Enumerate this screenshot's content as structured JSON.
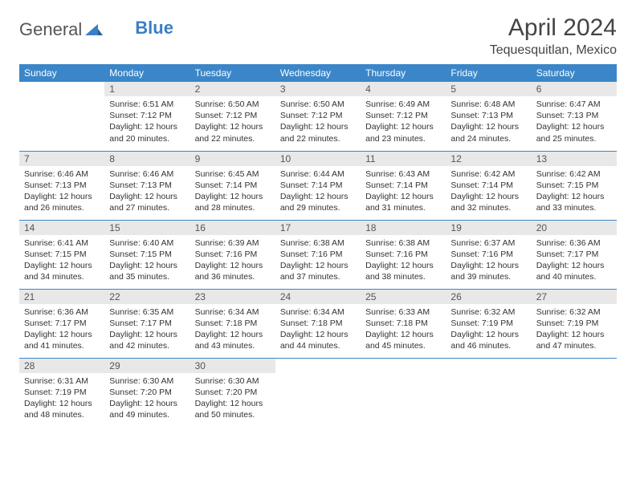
{
  "brand": {
    "part1": "General",
    "part2": "Blue"
  },
  "title": "April 2024",
  "location": "Tequesquitlan, Mexico",
  "colors": {
    "header_bg": "#3a86c8",
    "header_fg": "#ffffff",
    "daynum_bg": "#e8e8e8",
    "border": "#3a86c8",
    "logo_gray": "#555555",
    "logo_blue": "#3a7fc4"
  },
  "weekdays": [
    "Sunday",
    "Monday",
    "Tuesday",
    "Wednesday",
    "Thursday",
    "Friday",
    "Saturday"
  ],
  "layout": {
    "first_weekday_index": 1,
    "days_in_month": 30,
    "columns": 7
  },
  "days": {
    "1": {
      "sunrise": "6:51 AM",
      "sunset": "7:12 PM",
      "daylight": "12 hours and 20 minutes."
    },
    "2": {
      "sunrise": "6:50 AM",
      "sunset": "7:12 PM",
      "daylight": "12 hours and 22 minutes."
    },
    "3": {
      "sunrise": "6:50 AM",
      "sunset": "7:12 PM",
      "daylight": "12 hours and 22 minutes."
    },
    "4": {
      "sunrise": "6:49 AM",
      "sunset": "7:12 PM",
      "daylight": "12 hours and 23 minutes."
    },
    "5": {
      "sunrise": "6:48 AM",
      "sunset": "7:13 PM",
      "daylight": "12 hours and 24 minutes."
    },
    "6": {
      "sunrise": "6:47 AM",
      "sunset": "7:13 PM",
      "daylight": "12 hours and 25 minutes."
    },
    "7": {
      "sunrise": "6:46 AM",
      "sunset": "7:13 PM",
      "daylight": "12 hours and 26 minutes."
    },
    "8": {
      "sunrise": "6:46 AM",
      "sunset": "7:13 PM",
      "daylight": "12 hours and 27 minutes."
    },
    "9": {
      "sunrise": "6:45 AM",
      "sunset": "7:14 PM",
      "daylight": "12 hours and 28 minutes."
    },
    "10": {
      "sunrise": "6:44 AM",
      "sunset": "7:14 PM",
      "daylight": "12 hours and 29 minutes."
    },
    "11": {
      "sunrise": "6:43 AM",
      "sunset": "7:14 PM",
      "daylight": "12 hours and 31 minutes."
    },
    "12": {
      "sunrise": "6:42 AM",
      "sunset": "7:14 PM",
      "daylight": "12 hours and 32 minutes."
    },
    "13": {
      "sunrise": "6:42 AM",
      "sunset": "7:15 PM",
      "daylight": "12 hours and 33 minutes."
    },
    "14": {
      "sunrise": "6:41 AM",
      "sunset": "7:15 PM",
      "daylight": "12 hours and 34 minutes."
    },
    "15": {
      "sunrise": "6:40 AM",
      "sunset": "7:15 PM",
      "daylight": "12 hours and 35 minutes."
    },
    "16": {
      "sunrise": "6:39 AM",
      "sunset": "7:16 PM",
      "daylight": "12 hours and 36 minutes."
    },
    "17": {
      "sunrise": "6:38 AM",
      "sunset": "7:16 PM",
      "daylight": "12 hours and 37 minutes."
    },
    "18": {
      "sunrise": "6:38 AM",
      "sunset": "7:16 PM",
      "daylight": "12 hours and 38 minutes."
    },
    "19": {
      "sunrise": "6:37 AM",
      "sunset": "7:16 PM",
      "daylight": "12 hours and 39 minutes."
    },
    "20": {
      "sunrise": "6:36 AM",
      "sunset": "7:17 PM",
      "daylight": "12 hours and 40 minutes."
    },
    "21": {
      "sunrise": "6:36 AM",
      "sunset": "7:17 PM",
      "daylight": "12 hours and 41 minutes."
    },
    "22": {
      "sunrise": "6:35 AM",
      "sunset": "7:17 PM",
      "daylight": "12 hours and 42 minutes."
    },
    "23": {
      "sunrise": "6:34 AM",
      "sunset": "7:18 PM",
      "daylight": "12 hours and 43 minutes."
    },
    "24": {
      "sunrise": "6:34 AM",
      "sunset": "7:18 PM",
      "daylight": "12 hours and 44 minutes."
    },
    "25": {
      "sunrise": "6:33 AM",
      "sunset": "7:18 PM",
      "daylight": "12 hours and 45 minutes."
    },
    "26": {
      "sunrise": "6:32 AM",
      "sunset": "7:19 PM",
      "daylight": "12 hours and 46 minutes."
    },
    "27": {
      "sunrise": "6:32 AM",
      "sunset": "7:19 PM",
      "daylight": "12 hours and 47 minutes."
    },
    "28": {
      "sunrise": "6:31 AM",
      "sunset": "7:19 PM",
      "daylight": "12 hours and 48 minutes."
    },
    "29": {
      "sunrise": "6:30 AM",
      "sunset": "7:20 PM",
      "daylight": "12 hours and 49 minutes."
    },
    "30": {
      "sunrise": "6:30 AM",
      "sunset": "7:20 PM",
      "daylight": "12 hours and 50 minutes."
    }
  },
  "labels": {
    "sunrise": "Sunrise:",
    "sunset": "Sunset:",
    "daylight": "Daylight:"
  }
}
